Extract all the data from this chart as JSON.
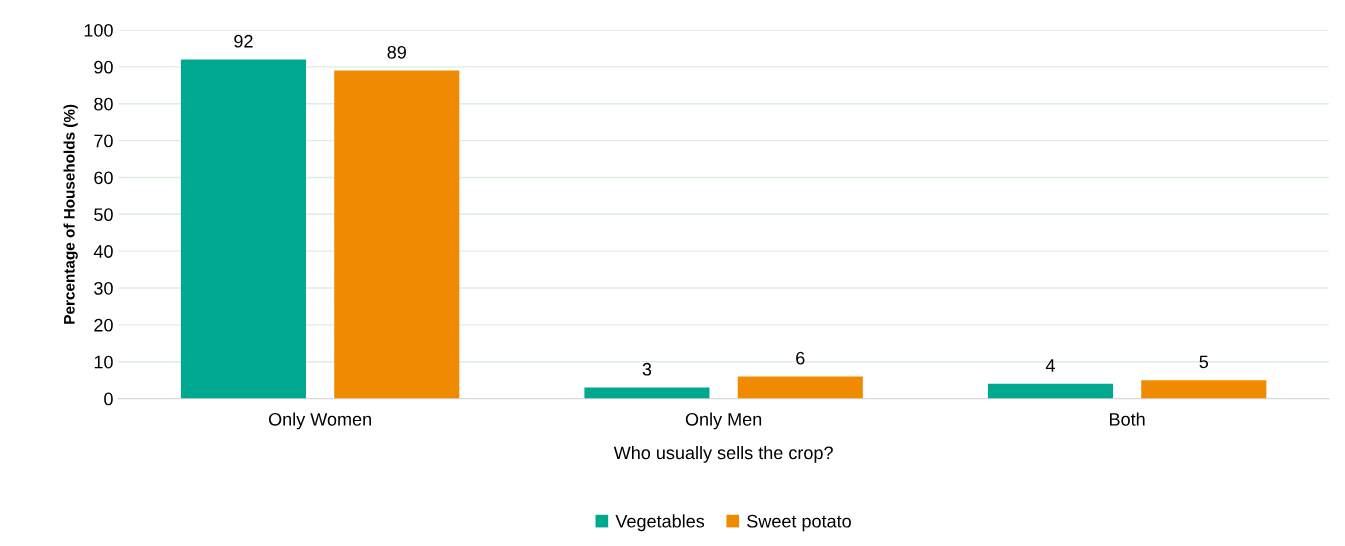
{
  "chart_data": {
    "type": "bar",
    "xlabel": "Who usually sells the crop?",
    "ylabel": "Percentage of Households (%)",
    "categories": [
      "Only Women",
      "Only Men",
      "Both"
    ],
    "series": [
      {
        "name": "Vegetables",
        "color": "#00a88f",
        "values": [
          92,
          3,
          4
        ]
      },
      {
        "name": "Sweet potato",
        "color": "#f08a00",
        "values": [
          89,
          6,
          5
        ]
      }
    ],
    "ylim": [
      0,
      100
    ],
    "yticks": [
      0,
      10,
      20,
      30,
      40,
      50,
      60,
      70,
      80,
      90,
      100
    ],
    "grid": "y",
    "legend": "bottom",
    "data_labels": true
  }
}
